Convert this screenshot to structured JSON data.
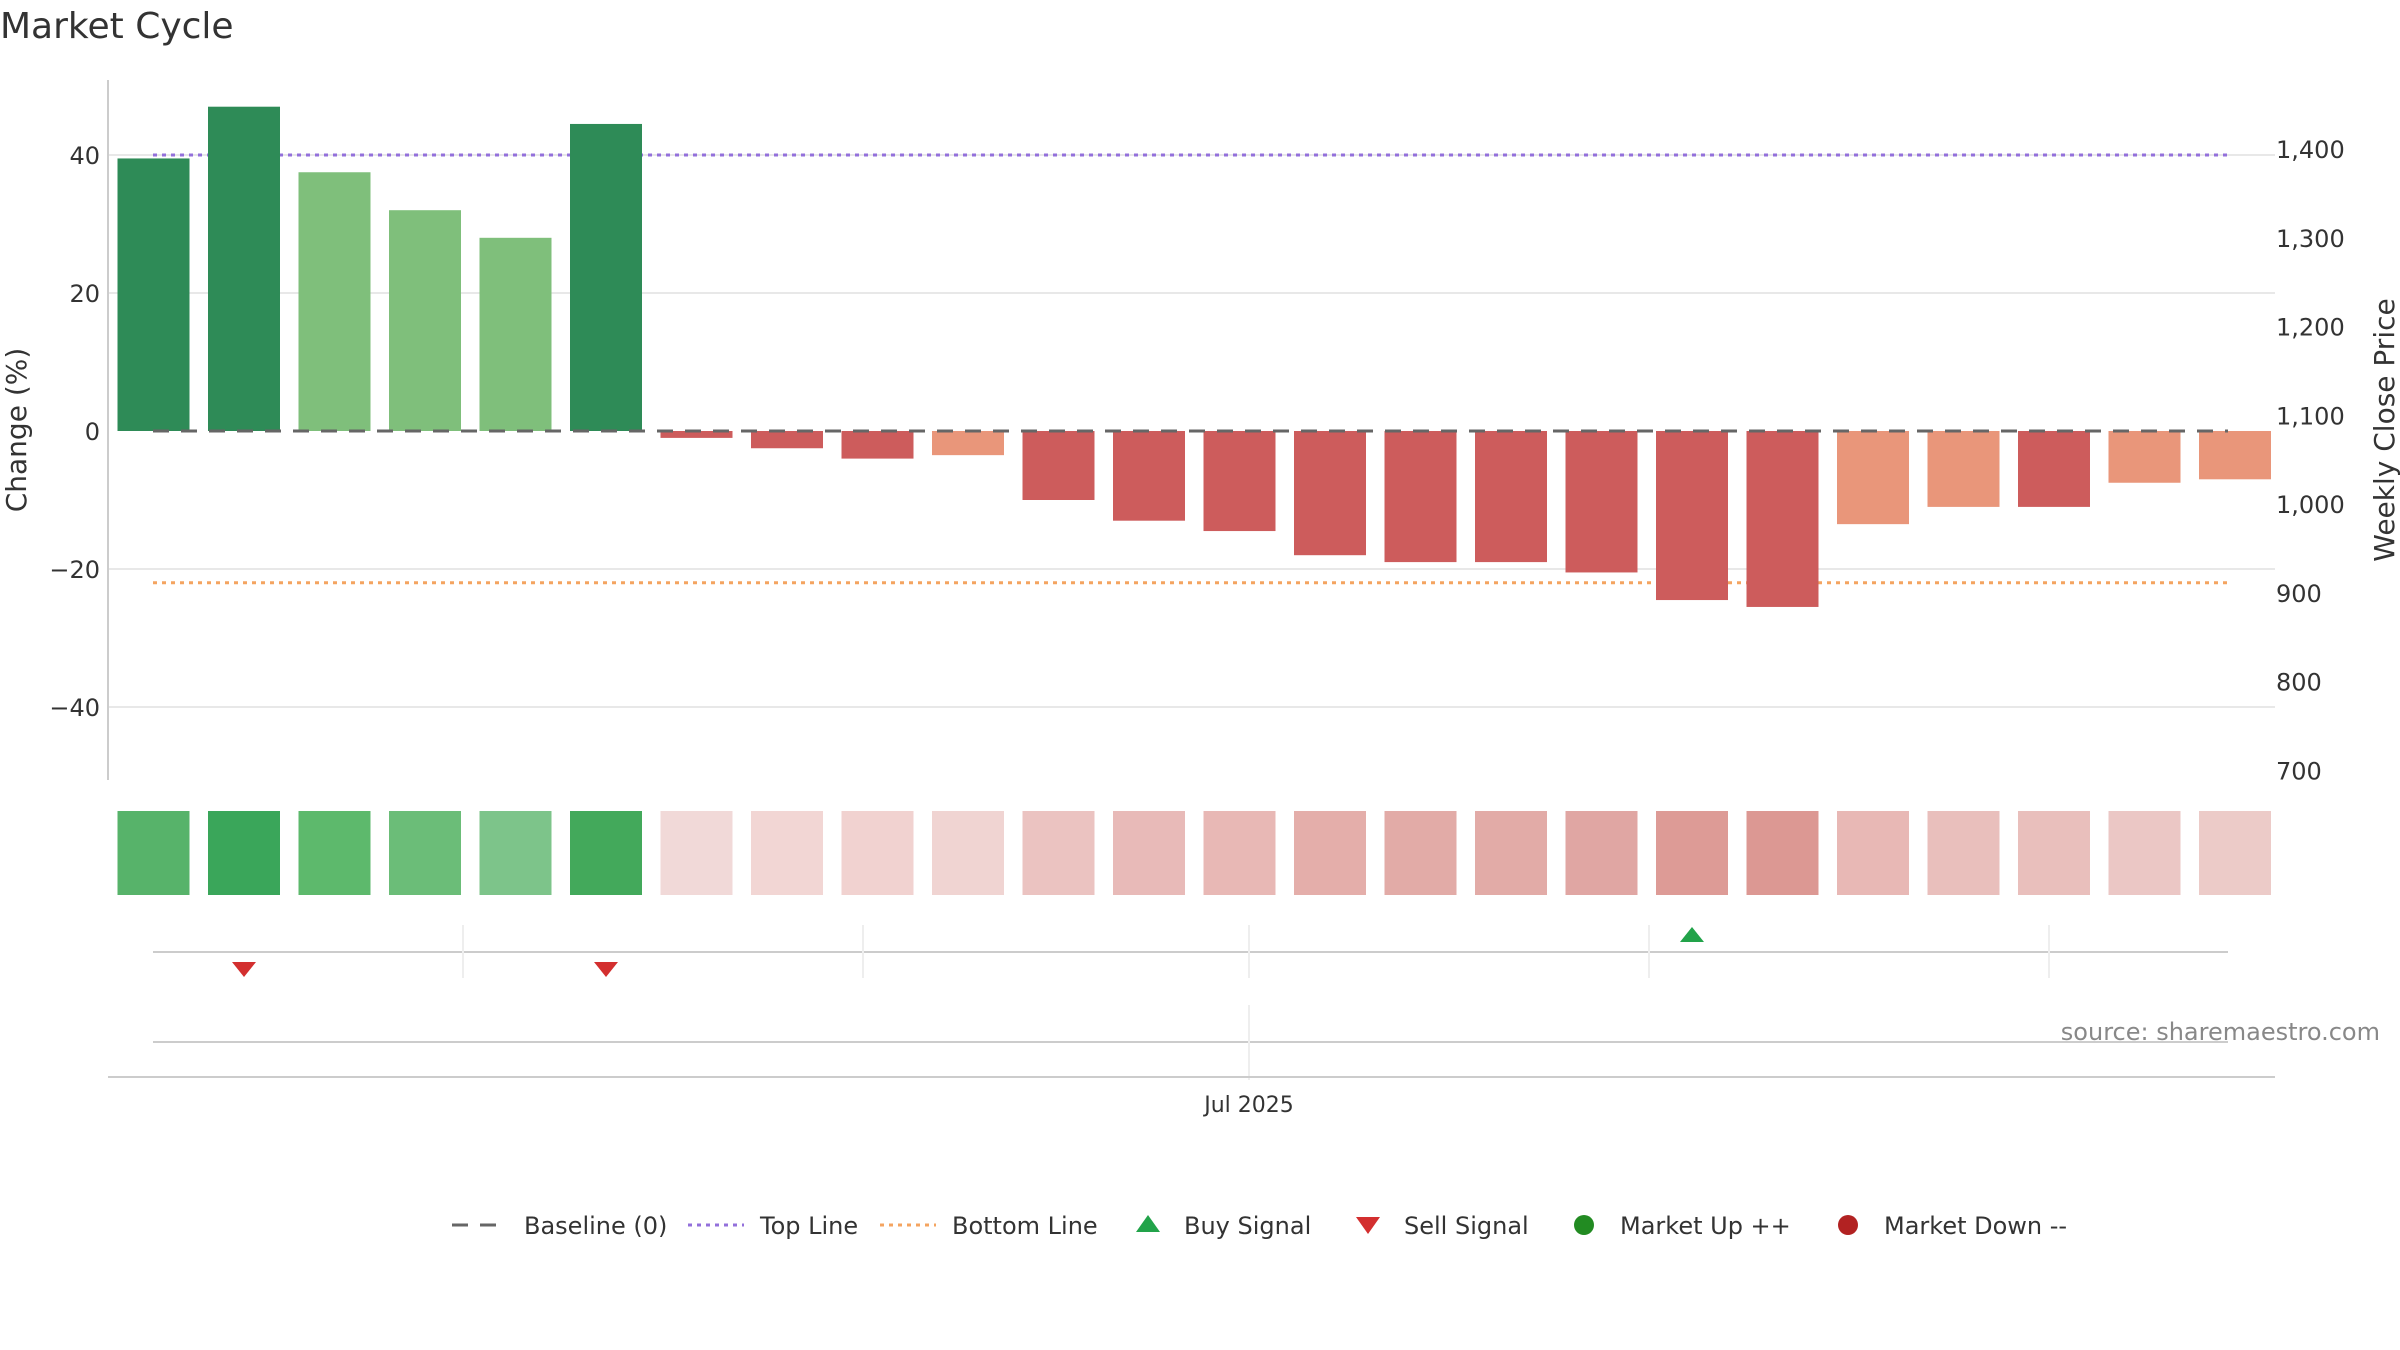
{
  "title": "Market Cycle",
  "source_text": "source: sharemaestro.com",
  "chart_data": {
    "type": "bar",
    "y_left": {
      "label": "Change (%)",
      "range": [
        -50,
        50
      ],
      "ticks": [
        40,
        20,
        0,
        -20,
        -40
      ],
      "tick_labels": [
        "40",
        "20",
        "0",
        "−20",
        "−40"
      ]
    },
    "y_right": {
      "label": "Weekly Close Price",
      "range": [
        690,
        1410
      ],
      "ticks": [
        1400,
        1300,
        1200,
        1100,
        1000,
        900,
        800,
        700
      ],
      "tick_labels": [
        "1,400",
        "1,300",
        "1,200",
        "1,100",
        "1,000",
        "900",
        "800",
        "700"
      ]
    },
    "x_label": "Jul 2025",
    "grid": true,
    "legend_position": "bottom",
    "bars": [
      {
        "value": 39.5,
        "shade": "dark-green",
        "strip": "#57b36a"
      },
      {
        "value": 47.0,
        "shade": "dark-green",
        "strip": "#3aa65a"
      },
      {
        "value": 37.5,
        "shade": "light-green",
        "strip": "#5db96c"
      },
      {
        "value": 32.0,
        "shade": "light-green",
        "strip": "#6bbd78"
      },
      {
        "value": 28.0,
        "shade": "light-green",
        "strip": "#7dc48a"
      },
      {
        "value": 44.5,
        "shade": "dark-green",
        "strip": "#43a95b"
      },
      {
        "value": -1.0,
        "shade": "red",
        "strip": "#f1d9d8"
      },
      {
        "value": -2.5,
        "shade": "red",
        "strip": "#f2d6d4"
      },
      {
        "value": -4.0,
        "shade": "red",
        "strip": "#f1d2d0"
      },
      {
        "value": -3.5,
        "shade": "salmon",
        "strip": "#f0d4d2"
      },
      {
        "value": -10.0,
        "shade": "red",
        "strip": "#ebc3c1"
      },
      {
        "value": -13.0,
        "shade": "red",
        "strip": "#e8bab8"
      },
      {
        "value": -14.5,
        "shade": "red",
        "strip": "#e8b8b5"
      },
      {
        "value": -18.0,
        "shade": "red",
        "strip": "#e4aeaa"
      },
      {
        "value": -19.0,
        "shade": "red",
        "strip": "#e2aba7"
      },
      {
        "value": -19.0,
        "shade": "red",
        "strip": "#e2aba7"
      },
      {
        "value": -20.5,
        "shade": "red",
        "strip": "#e0a6a3"
      },
      {
        "value": -24.5,
        "shade": "red",
        "strip": "#dd9b96"
      },
      {
        "value": -25.5,
        "shade": "red",
        "strip": "#dc9893"
      },
      {
        "value": -13.5,
        "shade": "salmon",
        "strip": "#e8b8b5"
      },
      {
        "value": -11.0,
        "shade": "salmon",
        "strip": "#e9bfbc"
      },
      {
        "value": -11.0,
        "shade": "red",
        "strip": "#e9bfbc"
      },
      {
        "value": -7.5,
        "shade": "salmon",
        "strip": "#ebc7c5"
      },
      {
        "value": -7.0,
        "shade": "salmon",
        "strip": "#eccbc8"
      }
    ],
    "top_line": 40,
    "bottom_line": -22,
    "signals": [
      {
        "bar": 1,
        "type": "sell"
      },
      {
        "bar": 5,
        "type": "sell"
      },
      {
        "bar": 17,
        "type": "buy"
      }
    ],
    "colors": {
      "dark-green": "#2e8b57",
      "light-green": "#7fbf7b",
      "red": "#cd5c5c",
      "salmon": "#e9967a",
      "top_line": "#9370db",
      "bottom_line": "#f4a460",
      "baseline": "#666666",
      "buy": "#22a34a",
      "sell": "#d32f2f",
      "market_up": "#228b22",
      "market_down": "#b22222"
    },
    "legend": [
      {
        "key": "baseline",
        "label": "Baseline (0)",
        "symbol": "dash"
      },
      {
        "key": "top_line",
        "label": "Top Line",
        "symbol": "dot"
      },
      {
        "key": "bottom_line",
        "label": "Bottom Line",
        "symbol": "dot"
      },
      {
        "key": "buy",
        "label": "Buy Signal",
        "symbol": "triangle-up"
      },
      {
        "key": "sell",
        "label": "Sell Signal",
        "symbol": "triangle-down"
      },
      {
        "key": "market_up",
        "label": "Market Up ++",
        "symbol": "circle"
      },
      {
        "key": "market_down",
        "label": "Market Down --",
        "symbol": "circle"
      }
    ]
  }
}
